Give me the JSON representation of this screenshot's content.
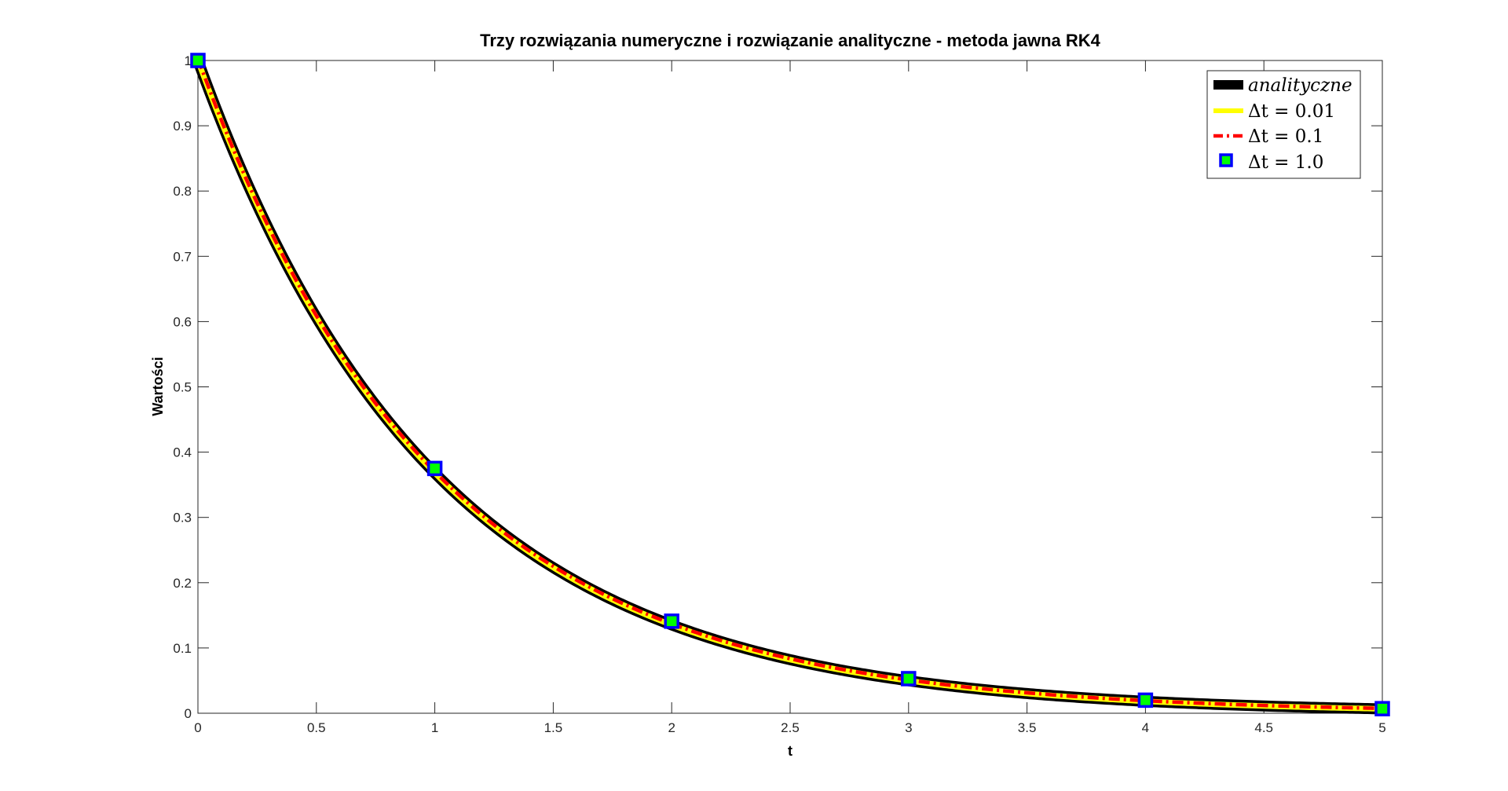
{
  "chart_data": {
    "type": "line",
    "title": "Trzy rozwiązania numeryczne i rozwiązanie analityczne - metoda jawna RK4",
    "xlabel": "t",
    "ylabel": "Wartości",
    "xlim": [
      0,
      5
    ],
    "ylim": [
      0,
      1
    ],
    "x_ticks": [
      "0",
      "0.5",
      "1",
      "1.5",
      "2",
      "2.5",
      "3",
      "3.5",
      "4",
      "4.5",
      "5"
    ],
    "y_ticks": [
      "0",
      "0.1",
      "0.2",
      "0.3",
      "0.4",
      "0.5",
      "0.6",
      "0.7",
      "0.8",
      "0.9",
      "1"
    ],
    "grid": false,
    "legend_position": "top-right",
    "series": [
      {
        "name": "analityczne",
        "style": "solid",
        "color": "#000000",
        "function": "exp(-t)",
        "x": [
          0,
          0.25,
          0.5,
          0.75,
          1,
          1.25,
          1.5,
          1.75,
          2,
          2.25,
          2.5,
          2.75,
          3,
          3.25,
          3.5,
          3.75,
          4,
          4.25,
          4.5,
          4.75,
          5
        ],
        "values": [
          1,
          0.779,
          0.607,
          0.472,
          0.368,
          0.287,
          0.223,
          0.174,
          0.135,
          0.105,
          0.082,
          0.064,
          0.05,
          0.039,
          0.03,
          0.023,
          0.018,
          0.014,
          0.011,
          0.009,
          0.007
        ]
      },
      {
        "name": "Δt = 0.01",
        "style": "solid",
        "color": "#ffff00",
        "x": [
          0,
          0.25,
          0.5,
          0.75,
          1,
          1.25,
          1.5,
          1.75,
          2,
          2.25,
          2.5,
          2.75,
          3,
          3.25,
          3.5,
          3.75,
          4,
          4.25,
          4.5,
          4.75,
          5
        ],
        "values": [
          1,
          0.779,
          0.607,
          0.472,
          0.368,
          0.287,
          0.223,
          0.174,
          0.135,
          0.105,
          0.082,
          0.064,
          0.05,
          0.039,
          0.03,
          0.023,
          0.018,
          0.014,
          0.011,
          0.009,
          0.007
        ]
      },
      {
        "name": "Δt = 0.1",
        "style": "dashdot",
        "color": "#ff0000",
        "x": [
          0,
          0.25,
          0.5,
          0.75,
          1,
          1.25,
          1.5,
          1.75,
          2,
          2.25,
          2.5,
          2.75,
          3,
          3.25,
          3.5,
          3.75,
          4,
          4.25,
          4.5,
          4.75,
          5
        ],
        "values": [
          1,
          0.779,
          0.607,
          0.472,
          0.368,
          0.287,
          0.223,
          0.174,
          0.135,
          0.105,
          0.082,
          0.064,
          0.05,
          0.039,
          0.03,
          0.023,
          0.018,
          0.014,
          0.011,
          0.009,
          0.007
        ]
      },
      {
        "name": "Δt = 1.0",
        "style": "markers",
        "marker": "square",
        "color": "#0000ff",
        "fill": "#00ff00",
        "x": [
          0,
          1,
          2,
          3,
          4,
          5
        ],
        "values": [
          1,
          0.375,
          0.141,
          0.053,
          0.02,
          0.007
        ]
      }
    ],
    "legend": [
      {
        "text": "analityczne",
        "italic": true,
        "swatch": "thick-black"
      },
      {
        "text": "Δt = 0.01",
        "italic": false,
        "swatch": "yellow"
      },
      {
        "text": "Δt = 0.1",
        "italic": false,
        "swatch": "red-dashdot"
      },
      {
        "text": "Δt = 1.0",
        "italic": false,
        "swatch": "square-marker"
      }
    ]
  },
  "colors": {
    "analytic": "#000000",
    "fine": "#ffff00",
    "medium": "#ff0000",
    "marker_edge": "#0000ff",
    "marker_fill": "#00ff00",
    "axes": "#262626"
  }
}
